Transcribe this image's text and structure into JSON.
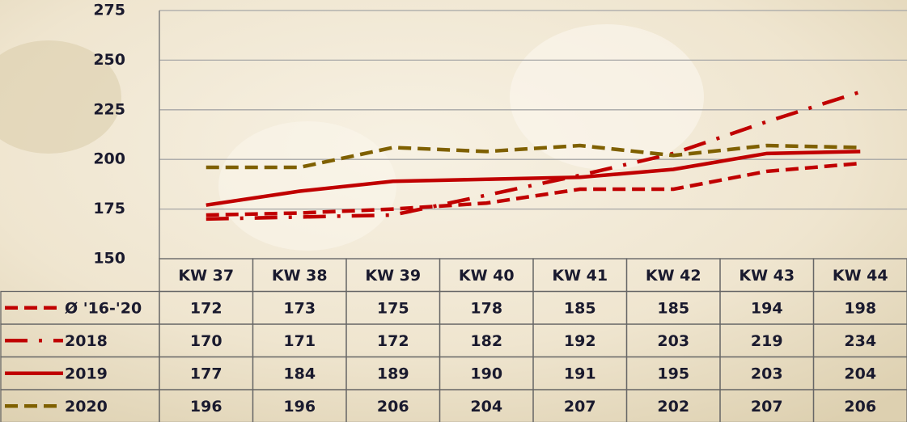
{
  "chart_data": {
    "type": "line",
    "categories": [
      "KW 37",
      "KW 38",
      "KW 39",
      "KW 40",
      "KW 41",
      "KW 42",
      "KW 43",
      "KW 44"
    ],
    "series": [
      {
        "name": "Ø '16-'20",
        "color": "#c00000",
        "style": "dash",
        "values": [
          172,
          173,
          175,
          178,
          185,
          185,
          194,
          198
        ]
      },
      {
        "name": "2018",
        "color": "#c00000",
        "style": "dashdot",
        "values": [
          170,
          171,
          172,
          182,
          192,
          203,
          219,
          234
        ]
      },
      {
        "name": "2019",
        "color": "#c00000",
        "style": "solid",
        "values": [
          177,
          184,
          189,
          190,
          191,
          195,
          203,
          204
        ]
      },
      {
        "name": "2020",
        "color": "#7f6000",
        "style": "dash",
        "values": [
          196,
          196,
          206,
          204,
          207,
          202,
          207,
          206
        ]
      }
    ],
    "ylim": [
      150,
      275
    ],
    "yticks": [
      150,
      175,
      200,
      225,
      250,
      275
    ],
    "grid": true
  }
}
